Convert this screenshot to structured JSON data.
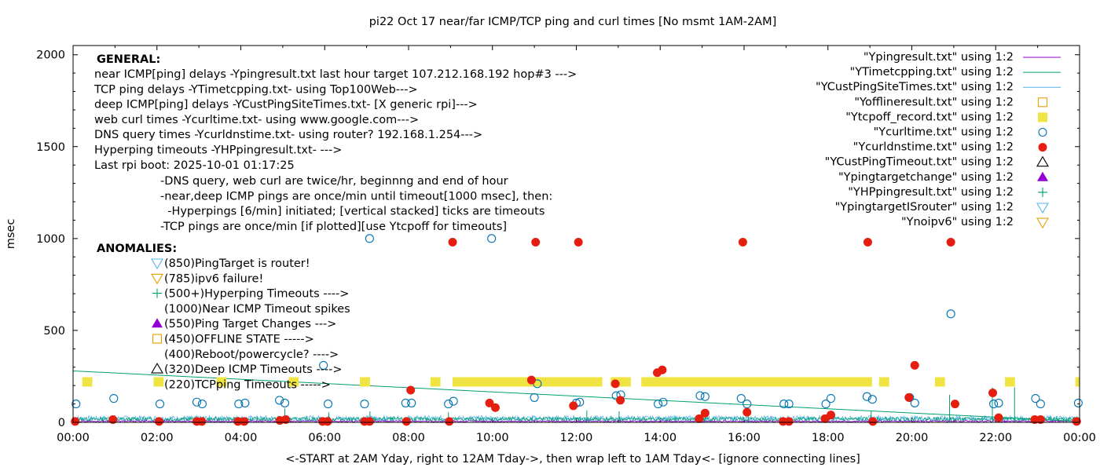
{
  "chart_data": {
    "type": "scatter",
    "title": "pi22 Oct 17  near/far ICMP/TCP ping and curl times [No msmt 1AM-2AM]",
    "xlabel": "<-START at 2AM Yday, right to 12AM Tday->, then wrap left to 1AM Tday<- [ignore connecting lines]",
    "ylabel": "msec",
    "xlim": [
      0,
      24
    ],
    "ylim": [
      0,
      2050
    ],
    "x_ticks": [
      "00:00",
      "02:00",
      "04:00",
      "06:00",
      "08:00",
      "10:00",
      "12:00",
      "14:00",
      "16:00",
      "18:00",
      "20:00",
      "22:00",
      "00:00"
    ],
    "y_ticks": [
      0,
      500,
      1000,
      1500,
      2000
    ],
    "legend_position": "top-right",
    "legend": [
      {
        "label": "\"Ypingresult.txt\" using 1:2",
        "marker": "line",
        "color": "#9400d3"
      },
      {
        "label": "\"YTimetcpping.txt\" using 1:2",
        "marker": "line",
        "color": "#009e73"
      },
      {
        "label": "\"YCustPingSiteTimes.txt\" using 1:2",
        "marker": "line",
        "color": "#56b4e9"
      },
      {
        "label": "\"Yofflineresult.txt\" using 1:2",
        "marker": "square-open",
        "color": "#e69f00"
      },
      {
        "label": "\"Ytcpoff_record.txt\" using 1:2",
        "marker": "square-filled",
        "color": "#f0e442"
      },
      {
        "label": "\"Ycurltime.txt\" using 1:2",
        "marker": "circle-open",
        "color": "#0072b2"
      },
      {
        "label": "\"Ycurldnstime.txt\" using 1:2",
        "marker": "circle-filled",
        "color": "#e51e10"
      },
      {
        "label": "\"YCustPingTimeout.txt\" using 1:2",
        "marker": "triangle-open",
        "color": "#000000"
      },
      {
        "label": "\"Ypingtargetchange\" using 1:2",
        "marker": "triangle-filled",
        "color": "#9400d3"
      },
      {
        "label": "\"YHPpingresult.txt\" using 1:2",
        "marker": "plus",
        "color": "#009e73"
      },
      {
        "label": "\"YpingtargetISrouter\" using 1:2",
        "marker": "triangle-down-open",
        "color": "#56b4e9"
      },
      {
        "label": "\"Ynoipv6\" using 1:2",
        "marker": "triangle-down-open",
        "color": "#e69f00"
      }
    ],
    "notes": {
      "general_title": "GENERAL:",
      "general_lines": [
        "near ICMP[ping] delays -Ypingresult.txt last hour target 107.212.168.192 hop#3 --->",
        "TCP ping delays -YTimetcpping.txt- using Top100Web--->",
        "deep ICMP[ping] delays -YCustPingSiteTimes.txt- [X generic rpi]--->",
        "web curl times -Ycurltime.txt- using www.google.com--->",
        "DNS query times -Ycurldnstime.txt- using router? 192.168.1.254--->",
        "Hyperping timeouts -YHPpingresult.txt- --->",
        "Last rpi boot: 2025-10-01 01:17:25"
      ],
      "sub_lines": [
        "-DNS query, web curl are twice/hr, beginnng and end of hour",
        "-near,deep ICMP pings are once/min until timeout[1000 msec], then:",
        "  -Hyperpings [6/min] initiated; [vertical stacked] ticks are timeouts",
        "-TCP pings are once/min [if plotted][use Ytcpoff for timeouts]"
      ],
      "anomalies_title": "ANOMALIES:",
      "anomalies": [
        {
          "text": "(850)PingTarget is router!",
          "marker": "triangle-down-open",
          "color": "#56b4e9"
        },
        {
          "text": "(785)ipv6 failure!",
          "marker": "triangle-down-open",
          "color": "#e69f00"
        },
        {
          "text": "(500+)Hyperping Timeouts ---->",
          "marker": "plus",
          "color": "#009e73"
        },
        {
          "text": "(1000)Near ICMP Timeout spikes",
          "marker": "none",
          "color": "#000000"
        },
        {
          "text": "(550)Ping Target Changes --->",
          "marker": "triangle-filled",
          "color": "#9400d3"
        },
        {
          "text": "(450)OFFLINE STATE ----->",
          "marker": "square-open",
          "color": "#e69f00"
        },
        {
          "text": "(400)Reboot/powercycle? ---->",
          "marker": "none",
          "color": "#000000"
        },
        {
          "text": "(320)Deep ICMP Timeouts ---->",
          "marker": "triangle-open",
          "color": "#000000"
        },
        {
          "text": "(220)TCPping Timeouts ----->",
          "marker": "none",
          "color": "#000000"
        }
      ]
    },
    "series": {
      "tcp_trend": {
        "name": "\"YTimetcpping.txt\" using 1:2",
        "color": "#009e73",
        "x": [
          0.0,
          24.0
        ],
        "y": [
          280,
          5
        ]
      },
      "tcp_spikes": {
        "color": "#009e73",
        "x": [
          5.05,
          6.1,
          7.08,
          8.95,
          12.25,
          13.02,
          15.07,
          16.1,
          19.03,
          20.9,
          21.92,
          22.45
        ],
        "y": [
          75,
          55,
          60,
          55,
          65,
          60,
          70,
          60,
          60,
          150,
          190,
          190
        ]
      },
      "ytcpoff_record": {
        "name": "\"Ytcpoff_record.txt\" using 1:2",
        "color": "#f0e442",
        "y": 220,
        "segments": [
          [
            0.22,
            0.46
          ],
          [
            1.92,
            2.16
          ],
          [
            3.42,
            3.66
          ],
          [
            5.14,
            5.38
          ],
          [
            6.84,
            7.08
          ],
          [
            8.52,
            8.76
          ],
          [
            9.05,
            12.62
          ],
          [
            12.82,
            13.3
          ],
          [
            13.55,
            19.05
          ],
          [
            19.22,
            19.46
          ],
          [
            20.55,
            20.79
          ],
          [
            22.22,
            22.46
          ],
          [
            23.9,
            24.0
          ]
        ]
      },
      "ycurltime": {
        "name": "\"Ycurltime.txt\" using 1:2",
        "color": "#0072b2",
        "x": [
          0.07,
          0.97,
          2.07,
          2.95,
          3.08,
          3.95,
          4.1,
          4.92,
          5.05,
          5.97,
          6.08,
          6.95,
          7.07,
          7.93,
          8.07,
          8.95,
          9.07,
          9.98,
          11.0,
          11.07,
          12.0,
          12.08,
          12.95,
          13.06,
          13.95,
          14.07,
          14.95,
          15.07,
          15.93,
          16.07,
          16.95,
          17.07,
          17.95,
          18.07,
          18.93,
          19.06,
          19.95,
          20.07,
          20.93,
          21.95,
          22.07,
          22.95,
          23.07,
          23.97
        ],
        "y": [
          100,
          130,
          100,
          110,
          100,
          100,
          105,
          120,
          105,
          310,
          100,
          100,
          1000,
          105,
          105,
          100,
          115,
          1000,
          135,
          210,
          105,
          110,
          145,
          150,
          100,
          110,
          145,
          140,
          130,
          100,
          100,
          100,
          100,
          130,
          140,
          125,
          135,
          105,
          590,
          100,
          105,
          130,
          100,
          105
        ]
      },
      "ycurldnstime": {
        "name": "\"Ycurldnstime.txt\" using 1:2",
        "color": "#e51e10",
        "x": [
          0.05,
          0.95,
          2.05,
          2.95,
          3.07,
          3.93,
          4.08,
          4.93,
          5.07,
          5.95,
          6.07,
          6.95,
          7.07,
          7.95,
          8.05,
          8.97,
          9.05,
          9.93,
          10.07,
          10.93,
          11.03,
          11.93,
          12.05,
          12.93,
          13.05,
          13.93,
          14.05,
          14.93,
          15.07,
          15.97,
          16.07,
          16.93,
          17.07,
          17.93,
          18.07,
          18.95,
          19.07,
          19.93,
          20.07,
          20.93,
          21.03,
          21.93,
          22.07,
          22.93,
          23.07,
          23.93
        ],
        "y": [
          5,
          15,
          5,
          5,
          5,
          5,
          5,
          10,
          15,
          5,
          5,
          5,
          5,
          5,
          175,
          5,
          980,
          105,
          80,
          230,
          980,
          90,
          980,
          210,
          120,
          270,
          285,
          20,
          50,
          980,
          55,
          5,
          5,
          20,
          40,
          980,
          5,
          135,
          310,
          980,
          100,
          160,
          25,
          15,
          15,
          5
        ]
      }
    }
  }
}
